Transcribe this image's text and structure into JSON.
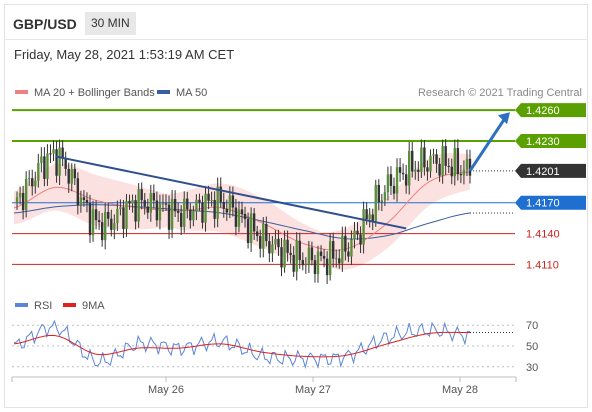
{
  "header": {
    "symbol": "GBP/USD",
    "timeframe": "30 MIN",
    "datetime": "Friday, May 28, 2021 1:53:19 AM CET"
  },
  "legend": {
    "ma20_label": "MA 20 + Bollinger Bands",
    "ma50_label": "MA 50",
    "ma20_color": "#f08080",
    "ma50_color": "#3a5fa0",
    "rsi_label": "RSI",
    "ma9_label": "9MA",
    "rsi_color": "#5b86d6",
    "ma9_color": "#e02020"
  },
  "copyright": "Research © 2021 Trading Central",
  "price_levels": [
    {
      "value": 1.426,
      "label": "1.4260",
      "kind": "resistance",
      "color": "#5aa000"
    },
    {
      "value": 1.423,
      "label": "1.4230",
      "kind": "resistance",
      "color": "#5aa000"
    },
    {
      "value": 1.4201,
      "label": "1.4201",
      "kind": "last",
      "color": "#333333"
    },
    {
      "value": 1.417,
      "label": "1.4170",
      "kind": "pivot",
      "color": "#1f6fd0"
    },
    {
      "value": 1.414,
      "label": "1.4140",
      "kind": "support",
      "color": "#d02020"
    },
    {
      "value": 1.411,
      "label": "1.4110",
      "kind": "support",
      "color": "#d02020"
    }
  ],
  "x_axis": {
    "ticks": [
      "May 26",
      "May 27",
      "May 28"
    ]
  },
  "rsi_axis": {
    "ticks": [
      "70",
      "50",
      "30"
    ]
  },
  "chart_data": [
    {
      "type": "line",
      "title": "",
      "xlabel": "",
      "ylabel": "",
      "y_axis_position": "right",
      "ylim": [
        1.409,
        1.4265
      ],
      "x": [
        "May 25 12:00",
        "May 25 18:00",
        "May 26 00:00",
        "May 26 06:00",
        "May 26 12:00",
        "May 26 18:00",
        "May 27 00:00",
        "May 27 06:00",
        "May 27 12:00",
        "May 27 18:00",
        "May 28 00:00",
        "May 28 01:30"
      ],
      "series": [
        {
          "name": "Price",
          "values": [
            1.417,
            1.4215,
            1.415,
            1.417,
            1.416,
            1.417,
            1.4135,
            1.4115,
            1.4125,
            1.4185,
            1.421,
            1.4201
          ]
        },
        {
          "name": "MA 20 + Bollinger Bands",
          "values": [
            1.4165,
            1.4185,
            1.4172,
            1.4165,
            1.4162,
            1.4165,
            1.415,
            1.413,
            1.4125,
            1.415,
            1.419,
            1.42
          ]
        },
        {
          "name": "MA 50",
          "values": [
            1.416,
            1.4166,
            1.4168,
            1.4166,
            1.4163,
            1.416,
            1.4152,
            1.4143,
            1.4135,
            1.4138,
            1.415,
            1.416
          ]
        }
      ],
      "trendline": {
        "from": {
          "x": "May 25 18:00",
          "y": 1.4215
        },
        "to": {
          "x": "May 27 16:00",
          "y": 1.4145
        }
      },
      "forecast_arrow": {
        "from": {
          "x": "May 28 01:30",
          "y": 1.4201
        },
        "to": {
          "x": "May 28 04:00",
          "y": 1.4258
        }
      },
      "grid": false,
      "legend_position": "top-left"
    },
    {
      "type": "line",
      "title": "",
      "xlabel": "",
      "ylabel": "",
      "y_axis_position": "right",
      "ylim": [
        25,
        75
      ],
      "x": [
        "May 25 12:00",
        "May 25 18:00",
        "May 26 00:00",
        "May 26 06:00",
        "May 26 12:00",
        "May 26 18:00",
        "May 27 00:00",
        "May 27 06:00",
        "May 27 12:00",
        "May 27 18:00",
        "May 28 00:00",
        "May 28 01:30"
      ],
      "series": [
        {
          "name": "RSI",
          "values": [
            50,
            68,
            35,
            52,
            48,
            54,
            40,
            38,
            40,
            58,
            65,
            60
          ]
        },
        {
          "name": "9MA",
          "values": [
            52,
            60,
            42,
            48,
            48,
            52,
            44,
            40,
            41,
            52,
            62,
            63
          ]
        }
      ],
      "reference_lines": [
        70,
        50,
        30
      ],
      "grid": false,
      "legend_position": "top-left"
    }
  ]
}
